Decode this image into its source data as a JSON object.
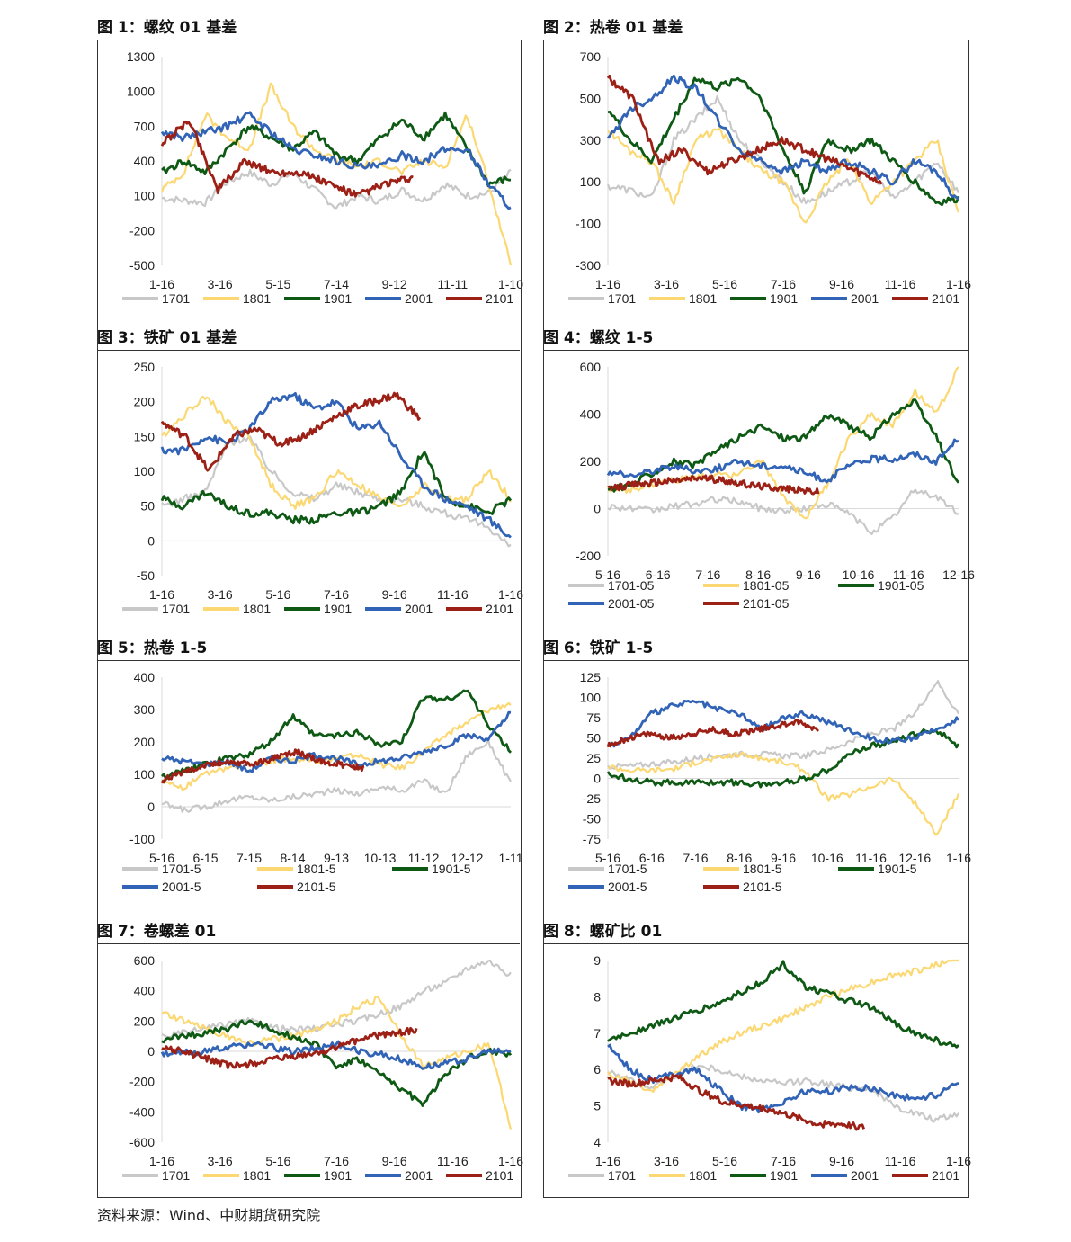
{
  "source_text": "资料来源：Wind、中财期货研究院",
  "colors": {
    "1701": "#c8c8c8",
    "1801": "#fbd872",
    "1901": "#0e5a14",
    "2001": "#3163b6",
    "2101": "#9d2016",
    "axis": "#d9d9d9"
  },
  "chart_data": [
    {
      "title": "图 1：螺纹 01 基差",
      "type": "line",
      "y_ticks": [
        "1300",
        "1000",
        "700",
        "400",
        "100",
        "-200",
        "-500"
      ],
      "ylim": [
        -500,
        1300
      ],
      "x_ticks": [
        "1-16",
        "3-16",
        "5-15",
        "7-14",
        "9-12",
        "11-11",
        "1-10"
      ],
      "x_count": 360,
      "legend_rows": [
        [
          "1701",
          "1801",
          "1901",
          "2001",
          "2101"
        ]
      ],
      "series": [
        {
          "name": "1701",
          "end": 1.0,
          "values": [
            80,
            60,
            40,
            220,
            300,
            200,
            300,
            150,
            0,
            100,
            50,
            150,
            60,
            200,
            100,
            120,
            300
          ]
        },
        {
          "name": "1801",
          "end": 1.0,
          "values": [
            150,
            300,
            800,
            600,
            500,
            1050,
            700,
            500,
            400,
            350,
            400,
            300,
            400,
            350,
            800,
            200,
            -500
          ]
        },
        {
          "name": "1901",
          "end": 1.0,
          "values": [
            300,
            400,
            300,
            500,
            700,
            600,
            500,
            650,
            450,
            400,
            600,
            750,
            600,
            800,
            500,
            200,
            250
          ]
        },
        {
          "name": "2001",
          "end": 1.0,
          "values": [
            650,
            600,
            650,
            700,
            800,
            650,
            500,
            450,
            400,
            350,
            350,
            450,
            400,
            500,
            500,
            200,
            0
          ]
        },
        {
          "name": "2101",
          "end": 0.72,
          "values": [
            550,
            750,
            150,
            400,
            300,
            300,
            200,
            100,
            200,
            250
          ]
        }
      ]
    },
    {
      "title": "图 2：热卷 01 基差",
      "type": "line",
      "y_ticks": [
        "700",
        "500",
        "300",
        "100",
        "-100",
        "-300"
      ],
      "ylim": [
        -300,
        700
      ],
      "x_ticks": [
        "1-16",
        "3-16",
        "5-16",
        "7-16",
        "9-16",
        "11-16",
        "1-16"
      ],
      "x_count": 365,
      "legend_rows": [
        [
          "1701",
          "1801",
          "1901",
          "2001",
          "2101"
        ]
      ],
      "series": [
        {
          "name": "1701",
          "end": 1.0,
          "values": [
            80,
            60,
            20,
            300,
            400,
            500,
            300,
            200,
            100,
            0,
            50,
            100,
            150,
            20,
            100,
            200,
            50
          ]
        },
        {
          "name": "1801",
          "end": 1.0,
          "values": [
            350,
            250,
            200,
            0,
            300,
            350,
            250,
            150,
            100,
            -100,
            100,
            200,
            0,
            100,
            200,
            300,
            -50
          ]
        },
        {
          "name": "1901",
          "end": 1.0,
          "values": [
            450,
            300,
            200,
            400,
            600,
            550,
            600,
            500,
            250,
            50,
            300,
            250,
            300,
            200,
            100,
            0,
            20
          ]
        },
        {
          "name": "2001",
          "end": 1.0,
          "values": [
            300,
            450,
            500,
            600,
            550,
            400,
            250,
            200,
            150,
            200,
            150,
            200,
            150,
            100,
            200,
            150,
            0
          ]
        },
        {
          "name": "2101",
          "end": 0.78,
          "values": [
            600,
            500,
            200,
            250,
            150,
            200,
            250,
            300,
            250,
            200,
            150,
            100
          ]
        }
      ]
    },
    {
      "title": "图 3：铁矿 01 基差",
      "type": "line",
      "y_ticks": [
        "250",
        "200",
        "150",
        "100",
        "50",
        "0",
        "-50"
      ],
      "ylim": [
        -50,
        250
      ],
      "x_ticks": [
        "1-16",
        "3-16",
        "5-16",
        "7-16",
        "9-16",
        "11-16",
        "1-16"
      ],
      "x_count": 365,
      "legend_rows": [
        [
          "1701",
          "1801",
          "1901",
          "2001",
          "2101"
        ]
      ],
      "series": [
        {
          "name": "1701",
          "end": 1.0,
          "values": [
            50,
            60,
            70,
            140,
            150,
            100,
            70,
            60,
            80,
            70,
            60,
            60,
            50,
            40,
            30,
            20,
            -10
          ]
        },
        {
          "name": "1801",
          "end": 1.0,
          "values": [
            150,
            180,
            210,
            170,
            150,
            80,
            50,
            60,
            100,
            80,
            60,
            50,
            80,
            60,
            60,
            100,
            60
          ]
        },
        {
          "name": "1901",
          "end": 1.0,
          "values": [
            60,
            50,
            70,
            50,
            40,
            40,
            30,
            30,
            40,
            40,
            50,
            70,
            130,
            60,
            50,
            40,
            60
          ]
        },
        {
          "name": "2001",
          "end": 1.0,
          "values": [
            130,
            130,
            150,
            140,
            160,
            200,
            210,
            190,
            200,
            160,
            170,
            120,
            80,
            60,
            50,
            30,
            5
          ]
        },
        {
          "name": "2101",
          "end": 0.74,
          "values": [
            170,
            150,
            100,
            150,
            160,
            140,
            150,
            170,
            190,
            200,
            210,
            175
          ]
        }
      ]
    },
    {
      "title": "图 4：螺纹 1-5",
      "type": "line",
      "y_ticks": [
        "600",
        "400",
        "200",
        "0",
        "-200"
      ],
      "ylim": [
        -200,
        600
      ],
      "x_ticks": [
        "5-16",
        "6-16",
        "7-16",
        "8-16",
        "9-16",
        "10-16",
        "11-16",
        "12-16"
      ],
      "x_count": 250,
      "legend_rows": [
        [
          "1701-05",
          "1801-05",
          "1901-05"
        ],
        [
          "2001-05",
          "2101-05"
        ]
      ],
      "series": [
        {
          "name": "1701-05",
          "end": 1.0,
          "values": [
            10,
            0,
            -10,
            10,
            20,
            40,
            30,
            0,
            -10,
            0,
            20,
            -20,
            -100,
            -40,
            80,
            50,
            -20
          ]
        },
        {
          "name": "1801-05",
          "end": 1.0,
          "values": [
            80,
            80,
            100,
            120,
            130,
            140,
            150,
            200,
            50,
            -40,
            100,
            300,
            400,
            350,
            500,
            400,
            600
          ]
        },
        {
          "name": "1901-05",
          "end": 1.0,
          "values": [
            80,
            100,
            150,
            200,
            180,
            250,
            300,
            350,
            300,
            300,
            400,
            350,
            300,
            400,
            450,
            300,
            100
          ]
        },
        {
          "name": "2001-05",
          "end": 1.0,
          "values": [
            150,
            140,
            160,
            180,
            160,
            170,
            200,
            180,
            180,
            150,
            120,
            180,
            210,
            210,
            230,
            200,
            300
          ]
        },
        {
          "name": "2101-05",
          "end": 0.6,
          "values": [
            80,
            100,
            110,
            120,
            130,
            120,
            100,
            90,
            80,
            70
          ]
        }
      ]
    },
    {
      "title": "图 5：热卷 1-5",
      "type": "line",
      "y_ticks": [
        "400",
        "300",
        "200",
        "100",
        "0",
        "-100"
      ],
      "ylim": [
        -100,
        400
      ],
      "x_ticks": [
        "5-16",
        "6-15",
        "7-15",
        "8-14",
        "9-13",
        "10-13",
        "11-12",
        "12-12",
        "1-11"
      ],
      "x_count": 250,
      "legend_rows": [
        [
          "1701-5",
          "1801-5",
          "1901-5"
        ],
        [
          "2001-5",
          "2101-5"
        ]
      ],
      "series": [
        {
          "name": "1701-5",
          "end": 1.0,
          "values": [
            10,
            -10,
            0,
            20,
            30,
            20,
            30,
            40,
            50,
            40,
            60,
            50,
            80,
            40,
            160,
            200,
            70
          ]
        },
        {
          "name": "1801-5",
          "end": 1.0,
          "values": [
            80,
            60,
            100,
            120,
            130,
            140,
            150,
            140,
            150,
            160,
            130,
            120,
            170,
            220,
            260,
            300,
            320
          ]
        },
        {
          "name": "1901-5",
          "end": 1.0,
          "values": [
            90,
            110,
            130,
            150,
            160,
            200,
            280,
            220,
            220,
            230,
            190,
            200,
            340,
            330,
            360,
            250,
            170
          ]
        },
        {
          "name": "2001-5",
          "end": 1.0,
          "values": [
            150,
            140,
            130,
            140,
            110,
            150,
            140,
            160,
            150,
            130,
            140,
            150,
            170,
            190,
            220,
            210,
            290
          ]
        },
        {
          "name": "2101-5",
          "end": 0.58,
          "values": [
            80,
            110,
            130,
            140,
            130,
            150,
            170,
            140,
            130,
            120
          ]
        }
      ]
    },
    {
      "title": "图 6：铁矿 1-5",
      "type": "line",
      "y_ticks": [
        "125",
        "100",
        "75",
        "50",
        "25",
        "0",
        "-25",
        "-50",
        "-75"
      ],
      "ylim": [
        -75,
        125
      ],
      "x_ticks": [
        "5-16",
        "6-16",
        "7-16",
        "8-16",
        "9-16",
        "10-16",
        "11-16",
        "12-16",
        "1-16"
      ],
      "x_count": 250,
      "legend_rows": [
        [
          "1701-5",
          "1801-5",
          "1901-5"
        ],
        [
          "2001-5",
          "2101-5"
        ]
      ],
      "series": [
        {
          "name": "1701-5",
          "end": 1.0,
          "values": [
            15,
            15,
            18,
            20,
            25,
            28,
            30,
            30,
            28,
            28,
            35,
            45,
            55,
            60,
            80,
            120,
            80
          ]
        },
        {
          "name": "1801-5",
          "end": 1.0,
          "values": [
            15,
            10,
            10,
            12,
            20,
            25,
            30,
            25,
            20,
            10,
            -25,
            -20,
            -10,
            0,
            -30,
            -70,
            -20
          ]
        },
        {
          "name": "1901-5",
          "end": 1.0,
          "values": [
            5,
            0,
            -5,
            -5,
            -5,
            -5,
            -5,
            -8,
            -5,
            0,
            10,
            30,
            40,
            45,
            55,
            60,
            40
          ]
        },
        {
          "name": "2001-5",
          "end": 1.0,
          "values": [
            40,
            50,
            80,
            90,
            95,
            85,
            80,
            60,
            75,
            80,
            70,
            60,
            50,
            45,
            50,
            60,
            75
          ]
        },
        {
          "name": "2101-5",
          "end": 0.6,
          "values": [
            40,
            50,
            55,
            50,
            55,
            60,
            55,
            60,
            65,
            70,
            60
          ]
        }
      ]
    },
    {
      "title": "图 7：卷螺差 01",
      "type": "line",
      "y_ticks": [
        "600",
        "400",
        "200",
        "0",
        "-200",
        "-400",
        "-600"
      ],
      "ylim": [
        -600,
        600
      ],
      "x_ticks": [
        "1-16",
        "3-16",
        "5-16",
        "7-16",
        "9-16",
        "11-16",
        "1-16"
      ],
      "x_count": 365,
      "legend_rows": [
        [
          "1701",
          "1801",
          "1901",
          "2001",
          "2101"
        ]
      ],
      "series": [
        {
          "name": "1701",
          "end": 1.0,
          "values": [
            100,
            120,
            150,
            180,
            200,
            160,
            140,
            150,
            180,
            200,
            250,
            300,
            400,
            450,
            550,
            600,
            500
          ]
        },
        {
          "name": "1801",
          "end": 1.0,
          "values": [
            250,
            200,
            150,
            100,
            50,
            80,
            100,
            150,
            200,
            300,
            350,
            100,
            -100,
            -50,
            0,
            50,
            -500
          ]
        },
        {
          "name": "1901",
          "end": 1.0,
          "values": [
            80,
            100,
            120,
            150,
            200,
            150,
            100,
            50,
            -100,
            -50,
            -150,
            -250,
            -350,
            -150,
            -50,
            0,
            -20
          ]
        },
        {
          "name": "2001",
          "end": 1.0,
          "values": [
            -20,
            -10,
            0,
            20,
            50,
            30,
            0,
            20,
            50,
            0,
            -20,
            -50,
            -100,
            -80,
            -50,
            0,
            0
          ]
        },
        {
          "name": "2101",
          "end": 0.73,
          "values": [
            20,
            0,
            -50,
            -100,
            -80,
            -50,
            -30,
            0,
            50,
            100,
            120,
            140
          ]
        }
      ]
    },
    {
      "title": "图 8：螺矿比 01",
      "type": "line",
      "y_ticks": [
        "9",
        "8",
        "7",
        "6",
        "5",
        "4"
      ],
      "ylim": [
        4,
        9
      ],
      "x_ticks": [
        "1-16",
        "3-16",
        "5-16",
        "7-16",
        "9-16",
        "11-16",
        "1-16"
      ],
      "x_count": 365,
      "legend_rows": [
        [
          "1701",
          "1801",
          "1901",
          "2001",
          "2101"
        ]
      ],
      "series": [
        {
          "name": "1701",
          "end": 1.0,
          "values": [
            6.0,
            5.7,
            5.5,
            5.8,
            6.1,
            6.0,
            5.8,
            5.7,
            5.6,
            5.7,
            5.6,
            5.5,
            5.5,
            5.0,
            4.8,
            4.6,
            4.8
          ]
        },
        {
          "name": "1801",
          "end": 1.0,
          "values": [
            5.9,
            5.7,
            5.4,
            5.9,
            6.3,
            6.7,
            7.0,
            7.2,
            7.4,
            7.7,
            8.0,
            8.2,
            8.4,
            8.6,
            8.7,
            8.9,
            9.1
          ]
        },
        {
          "name": "1901",
          "end": 1.0,
          "values": [
            6.8,
            7.0,
            7.2,
            7.4,
            7.6,
            7.8,
            8.1,
            8.4,
            8.9,
            8.3,
            8.1,
            7.9,
            7.7,
            7.3,
            7.0,
            6.8,
            6.6
          ]
        },
        {
          "name": "2001",
          "end": 1.0,
          "values": [
            6.7,
            6.0,
            5.7,
            5.9,
            6.0,
            5.5,
            5.0,
            4.9,
            5.1,
            5.4,
            5.4,
            5.5,
            5.5,
            5.3,
            5.2,
            5.3,
            5.7
          ]
        },
        {
          "name": "2101",
          "end": 0.73,
          "values": [
            5.7,
            5.6,
            5.7,
            5.8,
            5.4,
            5.1,
            5.0,
            4.9,
            4.7,
            4.5,
            4.5,
            4.4
          ]
        }
      ]
    }
  ]
}
